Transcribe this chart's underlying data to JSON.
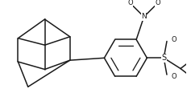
{
  "background_color": "#ffffff",
  "line_color": "#1a1a1a",
  "line_width": 1.1,
  "figsize": [
    2.37,
    1.31
  ],
  "dpi": 100,
  "xlim": [
    0,
    237
  ],
  "ylim": [
    0,
    131
  ]
}
